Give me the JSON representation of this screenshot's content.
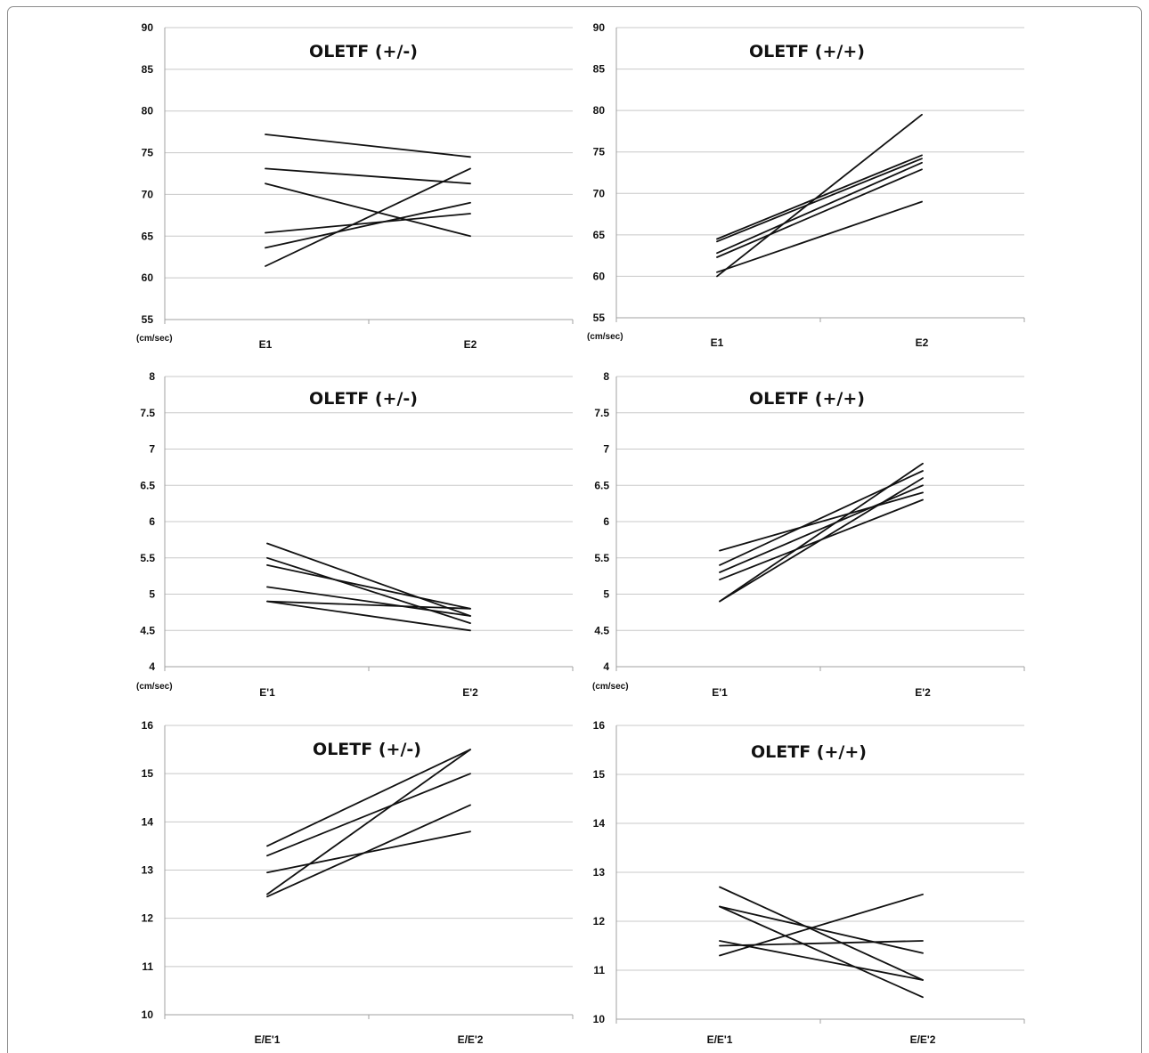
{
  "chart_data": [
    {
      "type": "line",
      "title": "OLETF (+/-)",
      "categories": [
        "E1",
        "E2"
      ],
      "ylim": [
        55,
        90
      ],
      "yticks": [
        "55",
        "60",
        "65",
        "70",
        "75",
        "80",
        "85",
        "90"
      ],
      "unit_label": "(cm/sec)",
      "xlabel": "",
      "ylabel": "",
      "grid": "horizontal",
      "series": [
        {
          "values": [
            77.2,
            74.5
          ]
        },
        {
          "values": [
            73.1,
            71.3
          ]
        },
        {
          "values": [
            71.3,
            65.0
          ]
        },
        {
          "values": [
            65.4,
            67.7
          ]
        },
        {
          "values": [
            63.6,
            69.0
          ]
        },
        {
          "values": [
            61.4,
            73.1
          ]
        }
      ]
    },
    {
      "type": "line",
      "title": "OLETF (+/+)",
      "categories": [
        "E1",
        "E2"
      ],
      "ylim": [
        55,
        90
      ],
      "yticks": [
        "55",
        "60",
        "65",
        "70",
        "75",
        "80",
        "85",
        "90"
      ],
      "unit_label": "(cm/sec)",
      "xlabel": "",
      "ylabel": "",
      "grid": "horizontal",
      "series": [
        {
          "values": [
            64.5,
            74.6
          ]
        },
        {
          "values": [
            64.2,
            74.2
          ]
        },
        {
          "values": [
            62.8,
            73.7
          ]
        },
        {
          "values": [
            62.3,
            72.9
          ]
        },
        {
          "values": [
            60.5,
            69.0
          ]
        },
        {
          "values": [
            60.0,
            79.5
          ]
        }
      ]
    },
    {
      "type": "line",
      "title": "OLETF (+/-)",
      "categories": [
        "E'1",
        "E'2"
      ],
      "ylim": [
        4,
        8
      ],
      "yticks": [
        "4",
        "4.5",
        "5",
        "5.5",
        "6",
        "6.5",
        "7",
        "7.5",
        "8"
      ],
      "unit_label": "(cm/sec)",
      "xlabel": "",
      "ylabel": "",
      "grid": "horizontal",
      "series": [
        {
          "values": [
            5.7,
            4.7
          ]
        },
        {
          "values": [
            5.5,
            4.6
          ]
        },
        {
          "values": [
            5.4,
            4.8
          ]
        },
        {
          "values": [
            5.1,
            4.7
          ]
        },
        {
          "values": [
            4.9,
            4.5
          ]
        },
        {
          "values": [
            4.9,
            4.8
          ]
        }
      ]
    },
    {
      "type": "line",
      "title": "OLETF (+/+)",
      "categories": [
        "E'1",
        "E'2"
      ],
      "ylim": [
        4,
        8
      ],
      "yticks": [
        "4",
        "4.5",
        "5",
        "5.5",
        "6",
        "6.5",
        "7",
        "7.5",
        "8"
      ],
      "unit_label": "(cm/sec)",
      "xlabel": "",
      "ylabel": "",
      "grid": "horizontal",
      "series": [
        {
          "values": [
            5.6,
            6.4
          ]
        },
        {
          "values": [
            5.4,
            6.7
          ]
        },
        {
          "values": [
            5.3,
            6.5
          ]
        },
        {
          "values": [
            5.2,
            6.3
          ]
        },
        {
          "values": [
            4.9,
            6.8
          ]
        },
        {
          "values": [
            4.9,
            6.6
          ]
        }
      ]
    },
    {
      "type": "line",
      "title": "OLETF (+/-)",
      "categories": [
        "E/E'1",
        "E/E'2"
      ],
      "ylim": [
        10,
        16
      ],
      "yticks": [
        "10",
        "11",
        "12",
        "13",
        "14",
        "15",
        "16"
      ],
      "unit_label": "",
      "xlabel": "",
      "ylabel": "",
      "grid": "horizontal",
      "series": [
        {
          "values": [
            13.5,
            15.5
          ]
        },
        {
          "values": [
            13.3,
            15.0
          ]
        },
        {
          "values": [
            12.95,
            13.8
          ]
        },
        {
          "values": [
            12.5,
            15.5
          ]
        },
        {
          "values": [
            12.45,
            14.35
          ]
        }
      ]
    },
    {
      "type": "line",
      "title": "OLETF (+/+)",
      "categories": [
        "E/E'1",
        "E/E'2"
      ],
      "ylim": [
        10,
        16
      ],
      "yticks": [
        "10",
        "11",
        "12",
        "13",
        "14",
        "15",
        "16"
      ],
      "unit_label": "",
      "xlabel": "",
      "ylabel": "",
      "grid": "horizontal",
      "series": [
        {
          "values": [
            12.7,
            10.8
          ]
        },
        {
          "values": [
            12.3,
            11.35
          ]
        },
        {
          "values": [
            12.3,
            10.45
          ]
        },
        {
          "values": [
            11.6,
            10.8
          ]
        },
        {
          "values": [
            11.5,
            11.6
          ]
        },
        {
          "values": [
            11.3,
            12.55
          ]
        }
      ]
    }
  ]
}
